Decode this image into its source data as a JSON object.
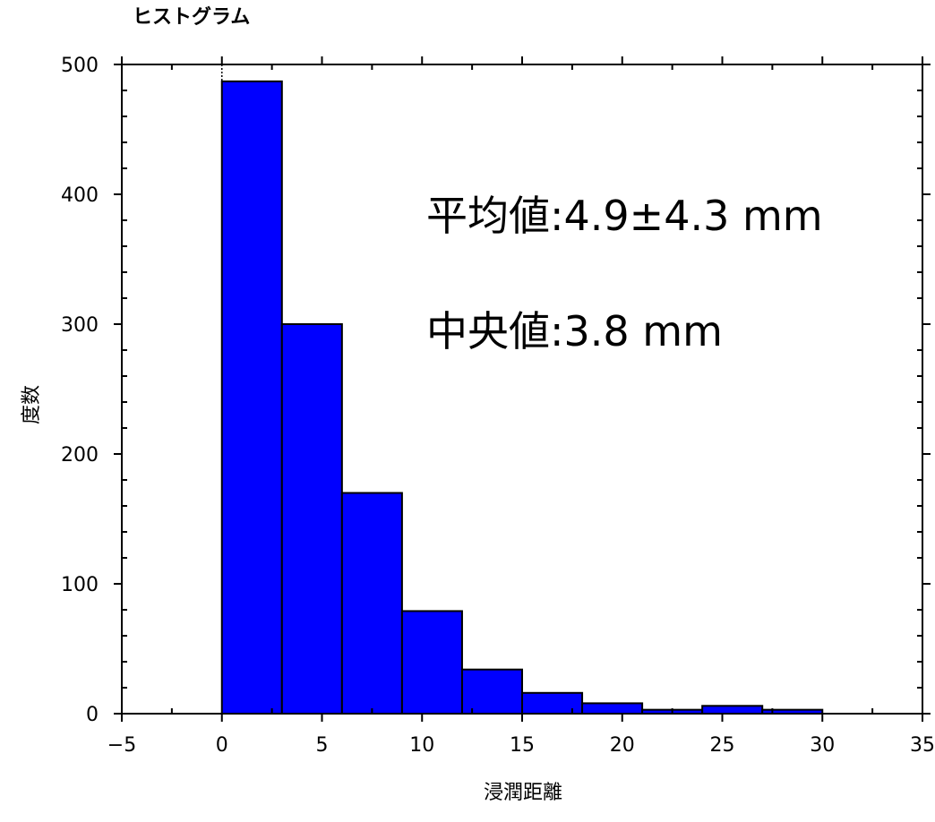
{
  "chart_data": {
    "type": "bar",
    "title": "ヒストグラム",
    "xlabel": "浸潤距離",
    "ylabel": "度数",
    "bin_edges": [
      0,
      3,
      6,
      9,
      12,
      15,
      18,
      21,
      24,
      27,
      30
    ],
    "values": [
      487,
      300,
      170,
      79,
      34,
      16,
      8,
      3,
      6,
      3
    ],
    "xlim": [
      -5,
      35
    ],
    "ylim": [
      0,
      500
    ],
    "x_ticks": [
      -5,
      0,
      5,
      10,
      15,
      20,
      25,
      30,
      35
    ],
    "x_tick_labels": [
      "−5",
      "0",
      "5",
      "10",
      "15",
      "20",
      "25",
      "30",
      "35"
    ],
    "y_ticks": [
      0,
      100,
      200,
      300,
      400,
      500
    ],
    "y_tick_labels": [
      "0",
      "100",
      "200",
      "300",
      "400",
      "500"
    ],
    "x_minor_step": 2.5,
    "y_minor_step": 20,
    "reference_line_x": 0,
    "bar_color": "#0000ff",
    "edge_color": "#000000",
    "annotations": [
      {
        "id": "mean",
        "text": "平均値:4.9±4.3 mm"
      },
      {
        "id": "median",
        "text": "中央値:3.8 mm"
      }
    ],
    "grid": false,
    "legend": "none"
  }
}
